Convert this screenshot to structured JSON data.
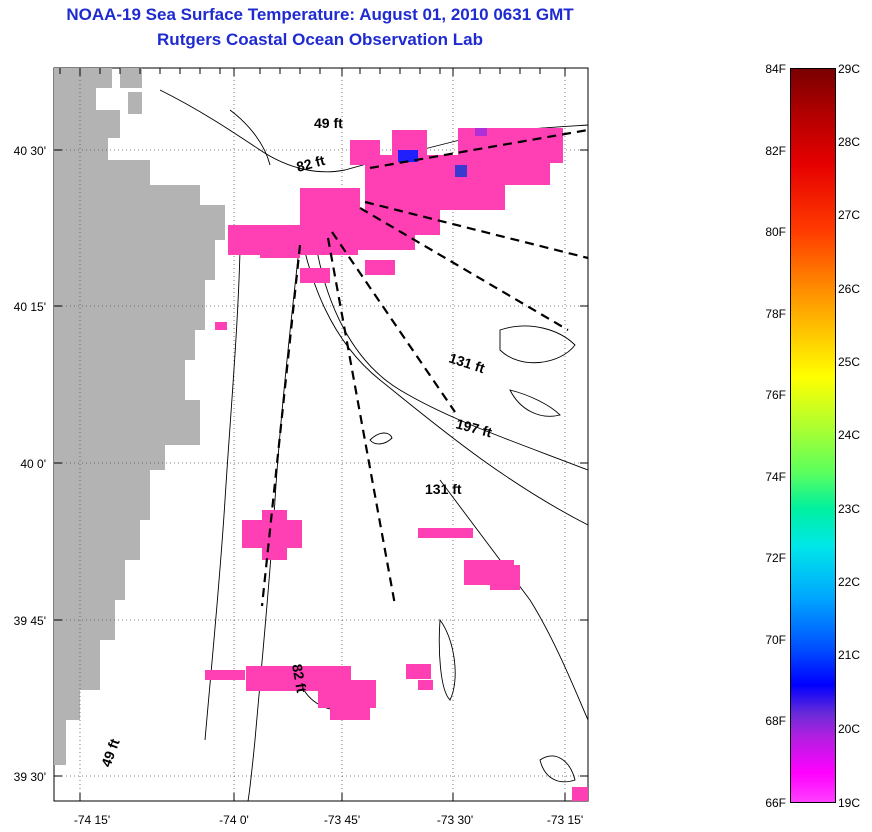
{
  "header": {
    "title": "NOAA-19 Sea Surface Temperature:  August 01, 2010 0631 GMT",
    "subtitle": "Rutgers Coastal Ocean Observation Lab"
  },
  "axes": {
    "lat_labels": [
      "40 30'",
      "40 15'",
      "40 0'",
      "39 45'",
      "39 30'"
    ],
    "lon_labels": [
      "-74 15'",
      "-74 0'",
      "-73 45'",
      "-73 30'",
      "-73 15'"
    ]
  },
  "contour_labels": {
    "c49_north": "49 ft",
    "c82_north": "82 ft",
    "c131_east": "131 ft",
    "c197": "197 ft",
    "c131_mid": "131 ft",
    "c82_south": "82 ft",
    "c49_south": "49 ft"
  },
  "colorbar": {
    "fahrenheit": [
      "84F",
      "82F",
      "80F",
      "78F",
      "76F",
      "74F",
      "72F",
      "70F",
      "68F",
      "66F"
    ],
    "celsius": [
      "29C",
      "28C",
      "27C",
      "26C",
      "25C",
      "24C",
      "23C",
      "22C",
      "21C",
      "20C",
      "19C"
    ]
  },
  "colors": {
    "title": "#1f2bd0",
    "land": "#b3b3b3",
    "sst_patch": "#ff3fb4",
    "cold_patch": "#2020ff",
    "grid": "#555555"
  }
}
